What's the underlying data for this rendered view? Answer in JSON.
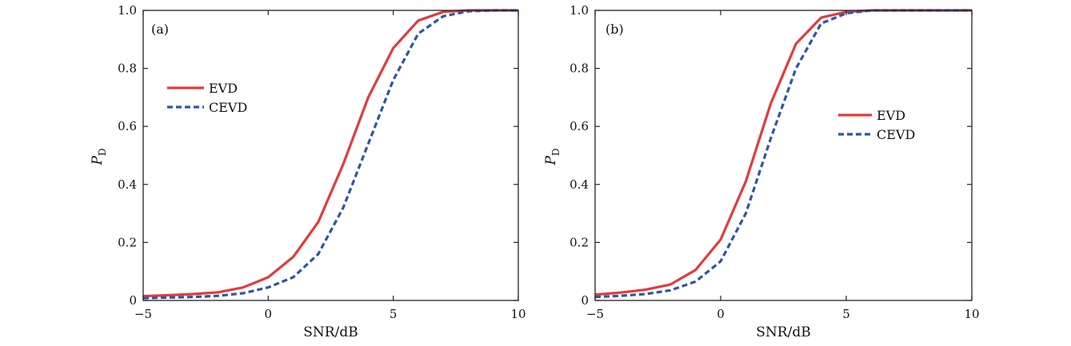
{
  "chart_data": [
    {
      "type": "line",
      "panel_label": "(a)",
      "xlabel": "SNR/dB",
      "ylabel_main": "P",
      "ylabel_sub": "D",
      "xlim": [
        -5,
        10
      ],
      "ylim": [
        0,
        1
      ],
      "xticks": [
        -5,
        0,
        5,
        10
      ],
      "xtick_labels": [
        "−5",
        "0",
        "5",
        "10"
      ],
      "yticks": [
        0,
        0.2,
        0.4,
        0.6,
        0.8,
        1.0
      ],
      "ytick_labels": [
        "0",
        "0.2",
        "0.4",
        "0.6",
        "0.8",
        "1.0"
      ],
      "grid": false,
      "legend_position": "upper-left",
      "x": [
        -5,
        -4,
        -3,
        -2,
        -1,
        0,
        1,
        2,
        3,
        4,
        5,
        6,
        7,
        8,
        9,
        10
      ],
      "series": [
        {
          "name": "EVD",
          "color": "#e03c3c",
          "dash": "solid",
          "values": [
            0.015,
            0.018,
            0.022,
            0.028,
            0.045,
            0.08,
            0.15,
            0.27,
            0.47,
            0.7,
            0.87,
            0.965,
            0.995,
            1.0,
            1.0,
            1.0
          ]
        },
        {
          "name": "CEVD",
          "color": "#2f56a0",
          "dash": "dashed",
          "values": [
            0.008,
            0.01,
            0.012,
            0.016,
            0.025,
            0.045,
            0.08,
            0.16,
            0.32,
            0.54,
            0.76,
            0.92,
            0.98,
            0.997,
            1.0,
            1.0
          ]
        }
      ]
    },
    {
      "type": "line",
      "panel_label": "(b)",
      "xlabel": "SNR/dB",
      "ylabel_main": "P",
      "ylabel_sub": "D",
      "xlim": [
        -5,
        10
      ],
      "ylim": [
        0,
        1
      ],
      "xticks": [
        -5,
        0,
        5,
        10
      ],
      "xtick_labels": [
        "−5",
        "0",
        "5",
        "10"
      ],
      "yticks": [
        0,
        0.2,
        0.4,
        0.6,
        0.8,
        1.0
      ],
      "ytick_labels": [
        "0",
        "0.2",
        "0.4",
        "0.6",
        "0.8",
        "1.0"
      ],
      "grid": false,
      "legend_position": "middle-right",
      "x": [
        -5,
        -4,
        -3,
        -2,
        -1,
        0,
        1,
        2,
        3,
        4,
        5,
        6,
        7,
        8,
        9,
        10
      ],
      "series": [
        {
          "name": "EVD",
          "color": "#e03c3c",
          "dash": "solid",
          "values": [
            0.02,
            0.027,
            0.037,
            0.055,
            0.105,
            0.21,
            0.41,
            0.68,
            0.885,
            0.975,
            0.995,
            1.0,
            1.0,
            1.0,
            1.0,
            1.0
          ]
        },
        {
          "name": "CEVD",
          "color": "#2f56a0",
          "dash": "dashed",
          "values": [
            0.012,
            0.016,
            0.022,
            0.035,
            0.065,
            0.135,
            0.3,
            0.56,
            0.8,
            0.955,
            0.99,
            1.0,
            1.0,
            1.0,
            1.0,
            1.0
          ]
        }
      ]
    }
  ]
}
